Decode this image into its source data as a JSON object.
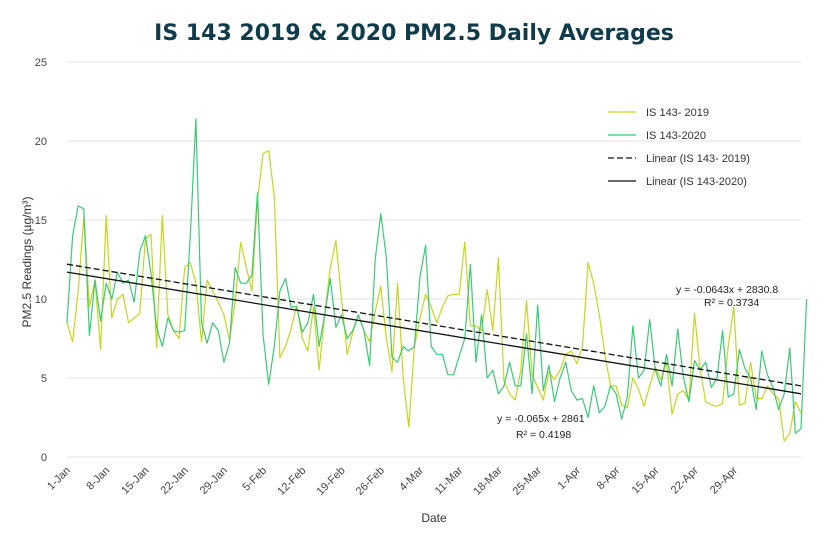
{
  "chart_data": {
    "type": "line",
    "title": "IS 143 2019 & 2020 PM2.5 Daily Averages",
    "xlabel": "Date",
    "ylabel": "PM2.5 Readings (µg/m³)",
    "ylim": [
      0,
      25
    ],
    "yticks": [
      0,
      5,
      10,
      15,
      20,
      25
    ],
    "grid": "horizontal",
    "legend_position": "top-right",
    "xtick_labels": [
      "1-Jan",
      "8-Jan",
      "15-Jan",
      "22-Jan",
      "29-Jan",
      "5-Feb",
      "12-Feb",
      "19-Feb",
      "26-Feb",
      "4-Mar",
      "11-Mar",
      "18-Mar",
      "25-Mar",
      "1-Apr",
      "8-Apr",
      "15-Apr",
      "22-Apr",
      "29-Apr"
    ],
    "series": [
      {
        "name": "IS 143- 2019",
        "color": "#c6d61e",
        "values": [
          8.5,
          7.3,
          10.5,
          15.2,
          9.5,
          11.2,
          6.8,
          15.3,
          8.8,
          10.0,
          10.3,
          8.5,
          8.8,
          9.1,
          13.8,
          14.1,
          6.9,
          15.3,
          9.0,
          8.0,
          7.5,
          12.0,
          12.3,
          11.0,
          7.3,
          11.2,
          10.5,
          9.8,
          9.0,
          7.4,
          9.8,
          13.6,
          12.0,
          10.5,
          16.3,
          19.2,
          19.4,
          16.5,
          6.3,
          7.0,
          8.1,
          9.6,
          7.5,
          6.7,
          9.5,
          5.5,
          9.0,
          12.0,
          13.7,
          10.0,
          6.5,
          7.9,
          9.0,
          8.0,
          7.3,
          9.2,
          10.8,
          7.5,
          5.4,
          11.0,
          5.0,
          1.9,
          7.0,
          8.8,
          10.3,
          9.5,
          8.5,
          9.5,
          10.2,
          10.3,
          10.3,
          13.6,
          8.3,
          8.3,
          8.0,
          10.6,
          8.0,
          12.6,
          4.8,
          4.0,
          3.6,
          5.5,
          9.9,
          5.2,
          4.4,
          3.6,
          5.4,
          4.9,
          5.5,
          6.5,
          6.7,
          5.9,
          7.0,
          12.3,
          11.0,
          9.0,
          6.5,
          4.5,
          4.5,
          3.3,
          3.1,
          5.0,
          4.3,
          3.2,
          4.5,
          5.7,
          4.9,
          6.0,
          2.7,
          4.0,
          4.2,
          3.6,
          9.1,
          5.6,
          3.5,
          3.3,
          3.2,
          3.4,
          7.0,
          9.5,
          3.3,
          3.4,
          6.0,
          3.7,
          3.7,
          4.5,
          4.0,
          3.7,
          1.0,
          1.5,
          3.5,
          2.8
        ]
      },
      {
        "name": "IS 143-2020",
        "color": "#3cc978",
        "values": [
          8.5,
          14.0,
          15.9,
          15.7,
          7.7,
          11.2,
          8.6,
          11.0,
          10.0,
          11.7,
          11.0,
          11.2,
          9.8,
          13.0,
          14.0,
          11.6,
          8.2,
          7.0,
          8.8,
          8.0,
          7.9,
          8.0,
          14.0,
          21.4,
          8.5,
          7.2,
          8.5,
          8.0,
          6.0,
          7.2,
          12.0,
          11.0,
          11.0,
          11.5,
          16.7,
          7.7,
          4.6,
          7.0,
          10.5,
          11.3,
          9.5,
          9.5,
          7.9,
          8.5,
          10.3,
          7.0,
          9.0,
          11.3,
          8.2,
          9.0,
          7.5,
          8.0,
          9.0,
          8.0,
          5.8,
          12.5,
          15.4,
          12.6,
          6.3,
          6.0,
          7.0,
          6.7,
          7.0,
          11.4,
          13.4,
          7.0,
          6.5,
          6.5,
          5.2,
          5.2,
          6.4,
          7.5,
          12.2,
          6.0,
          9.0,
          5.0,
          5.5,
          4.0,
          4.5,
          6.0,
          4.5,
          4.5,
          7.8,
          4.0,
          9.6,
          4.2,
          5.8,
          3.5,
          5.0,
          6.0,
          4.2,
          3.6,
          3.7,
          2.5,
          4.5,
          2.8,
          3.2,
          4.5,
          4.0,
          2.4,
          3.8,
          8.3,
          5.0,
          5.5,
          8.7,
          5.5,
          4.5,
          6.5,
          4.5,
          8.1,
          5.1,
          3.5,
          6.1,
          5.5,
          6.0,
          4.4,
          5.0,
          8.0,
          3.8,
          4.0,
          6.8,
          5.6,
          5.0,
          3.0,
          6.7,
          5.2,
          4.4,
          3.0,
          4.0,
          6.9,
          1.5,
          1.8,
          10.0
        ]
      },
      {
        "name": "Linear (IS 143- 2019)",
        "color": "#111111",
        "style": "dashed",
        "values": [
          12.2,
          4.5
        ]
      },
      {
        "name": "Linear (IS 143-2020)",
        "color": "#111111",
        "style": "solid",
        "values": [
          11.7,
          4.0
        ]
      }
    ],
    "annotations": [
      {
        "text": "y = -0.0643x + 2830.8"
      },
      {
        "text": "R² = 0.3734"
      },
      {
        "text": "y = -0.065x + 2861"
      },
      {
        "text": "R² = 0.4198"
      }
    ]
  }
}
